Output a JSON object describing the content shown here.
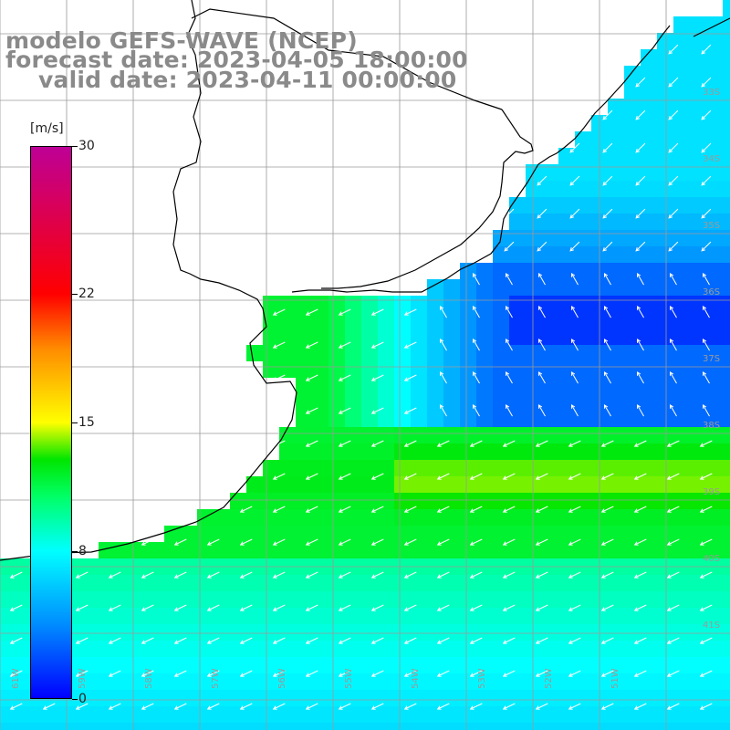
{
  "title": {
    "line1": "modelo GEFS-WAVE (NCEP)",
    "line2": "forecast date: 2023-04-05 18:00:00",
    "line3": "valid date: 2023-04-11 00:00:00"
  },
  "colorbar": {
    "unit": "[m/s]",
    "min": 0,
    "max": 30,
    "ticks": [
      "30",
      "22",
      "15",
      "8",
      "0"
    ],
    "tick_values": [
      30,
      22,
      15,
      8,
      0
    ]
  },
  "map": {
    "lon_labels": [
      "61W",
      "59W",
      "58W",
      "57W",
      "56W",
      "55W",
      "54W",
      "53W",
      "52W",
      "51W"
    ],
    "lat_labels": [
      "33S",
      "34S",
      "35S",
      "36S",
      "37S",
      "38S",
      "39S",
      "40S",
      "41S"
    ],
    "colors": {
      "land": "#ffffff",
      "grid": "#9a9a9a",
      "coast": "#000000",
      "arrow": "#ffffff"
    }
  }
}
